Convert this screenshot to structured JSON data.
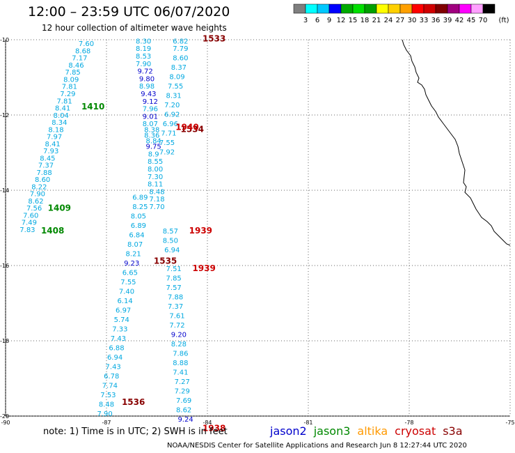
{
  "title": "12:00 – 23:59 UTC 06/07/2020",
  "subtitle": "12 hour collection of altimeter wave heights",
  "note": "note:  1) Time is in UTC;  2) SWH is in feet",
  "credit": "NOAA/NESDIS Center for Satellite Applications and Research    Jun  8 12:27:44 UTC 2020",
  "satellites": [
    {
      "name": "jason2",
      "color": "#0000cc"
    },
    {
      "name": "jason3",
      "color": "#008800"
    },
    {
      "name": "altika",
      "color": "#ff9900"
    },
    {
      "name": "cryosat",
      "color": "#cc0000"
    },
    {
      "name": "s3a",
      "color": "#880000"
    }
  ],
  "color_scale": {
    "labels": [
      "3",
      "6",
      "9",
      "12",
      "15",
      "18",
      "21",
      "24",
      "27",
      "30",
      "33",
      "36",
      "39",
      "42",
      "45",
      "70"
    ],
    "unit": "(ft)",
    "colors": [
      "#7f7f7f",
      "#00ffff",
      "#00c8ff",
      "#0000ff",
      "#00aa00",
      "#00e000",
      "#00a000",
      "#ffff00",
      "#ffd000",
      "#ffa000",
      "#ff0000",
      "#d00000",
      "#800000",
      "#a0007f",
      "#ff00ff",
      "#ffa0ff",
      "#000000"
    ]
  },
  "axes": {
    "lon_ticks": [
      -90,
      -87,
      -84,
      -81,
      -78,
      -75
    ],
    "lat_ticks": [
      -10,
      -12,
      -14,
      -16,
      -18,
      -20
    ],
    "lon_range": [
      -90,
      -75
    ],
    "lat_range": [
      -20,
      -10
    ]
  },
  "track_a": {
    "color": "#00a8e0",
    "labels": [
      {
        "v": "7.60",
        "lon": -87.6,
        "lat": -10.17
      },
      {
        "v": "8.68",
        "lon": -87.7,
        "lat": -10.36
      },
      {
        "v": "7.17",
        "lon": -87.8,
        "lat": -10.55
      },
      {
        "v": "8.46",
        "lon": -87.9,
        "lat": -10.74
      },
      {
        "v": "7.85",
        "lon": -88.0,
        "lat": -10.93
      },
      {
        "v": "8.09",
        "lon": -88.05,
        "lat": -11.12
      },
      {
        "v": "7.81",
        "lon": -88.1,
        "lat": -11.31
      },
      {
        "v": "7.29",
        "lon": -88.15,
        "lat": -11.5
      },
      {
        "v": "7.81",
        "lon": -88.25,
        "lat": -11.69
      },
      {
        "v": "8.41",
        "lon": -88.3,
        "lat": -11.88
      },
      {
        "v": "8.04",
        "lon": -88.35,
        "lat": -12.07
      },
      {
        "v": "8.34",
        "lon": -88.4,
        "lat": -12.26
      },
      {
        "v": "8.18",
        "lon": -88.5,
        "lat": -12.45
      },
      {
        "v": "7.97",
        "lon": -88.55,
        "lat": -12.64
      },
      {
        "v": "8.41",
        "lon": -88.6,
        "lat": -12.83
      },
      {
        "v": "7.93",
        "lon": -88.65,
        "lat": -13.02
      },
      {
        "v": "8.45",
        "lon": -88.75,
        "lat": -13.21
      },
      {
        "v": "7.37",
        "lon": -88.8,
        "lat": -13.4
      },
      {
        "v": "7.88",
        "lon": -88.85,
        "lat": -13.59
      },
      {
        "v": "8.60",
        "lon": -88.9,
        "lat": -13.78
      },
      {
        "v": "8.22",
        "lon": -89.0,
        "lat": -13.97
      },
      {
        "v": "7.90",
        "lon": -89.05,
        "lat": -14.16
      },
      {
        "v": "8.62",
        "lon": -89.1,
        "lat": -14.35
      },
      {
        "v": "7.56",
        "lon": -89.15,
        "lat": -14.54
      },
      {
        "v": "7.60",
        "lon": -89.25,
        "lat": -14.73
      },
      {
        "v": "7.49",
        "lon": -89.3,
        "lat": -14.92
      },
      {
        "v": "7.83",
        "lon": -89.35,
        "lat": -15.11
      }
    ],
    "times": [
      {
        "v": "1410",
        "lon": -87.4,
        "lat": -11.85,
        "color": "#008800"
      },
      {
        "v": "1409",
        "lon": -88.4,
        "lat": -14.55,
        "color": "#008800"
      },
      {
        "v": "1408",
        "lon": -88.6,
        "lat": -15.15,
        "color": "#008800"
      }
    ]
  },
  "track_b": {
    "color": "#00a8e0",
    "labels": [
      {
        "v": "8.30",
        "lon": -85.9,
        "lat": -10.1
      },
      {
        "v": "8.19",
        "lon": -85.9,
        "lat": -10.3
      },
      {
        "v": "8.53",
        "lon": -85.9,
        "lat": -10.5
      },
      {
        "v": "7.90",
        "lon": -85.9,
        "lat": -10.7
      },
      {
        "v": "9.72",
        "lon": -85.85,
        "lat": -10.9,
        "c": "#0000cc"
      },
      {
        "v": "9.80",
        "lon": -85.8,
        "lat": -11.1,
        "c": "#0000cc"
      },
      {
        "v": "8.98",
        "lon": -85.8,
        "lat": -11.3
      },
      {
        "v": "9.43",
        "lon": -85.75,
        "lat": -11.5,
        "c": "#0000cc"
      },
      {
        "v": "9.12",
        "lon": -85.7,
        "lat": -11.7,
        "c": "#0000cc"
      },
      {
        "v": "7.96",
        "lon": -85.7,
        "lat": -11.9
      },
      {
        "v": "9.01",
        "lon": -85.7,
        "lat": -12.1,
        "c": "#0000cc"
      },
      {
        "v": "8.07",
        "lon": -85.7,
        "lat": -12.3
      },
      {
        "v": "8.38",
        "lon": -85.65,
        "lat": -12.45
      },
      {
        "v": "8.36",
        "lon": -85.65,
        "lat": -12.6
      },
      {
        "v": "8.84",
        "lon": -85.6,
        "lat": -12.75
      },
      {
        "v": "9.75",
        "lon": -85.6,
        "lat": -12.9,
        "c": "#0000cc"
      },
      {
        "v": "8.9",
        "lon": -85.6,
        "lat": -13.1
      },
      {
        "v": "8.55",
        "lon": -85.55,
        "lat": -13.3
      },
      {
        "v": "8.00",
        "lon": -85.55,
        "lat": -13.5
      },
      {
        "v": "7.30",
        "lon": -85.55,
        "lat": -13.7
      },
      {
        "v": "8.11",
        "lon": -85.55,
        "lat": -13.9
      },
      {
        "v": "8.48",
        "lon": -85.5,
        "lat": -14.1
      },
      {
        "v": "7.18",
        "lon": -85.5,
        "lat": -14.3
      },
      {
        "v": "7.70",
        "lon": -85.5,
        "lat": -14.5
      }
    ]
  },
  "track_c": {
    "color": "#00a8e0",
    "labels": [
      {
        "v": "6.82",
        "lon": -84.8,
        "lat": -10.1
      },
      {
        "v": "7.79",
        "lon": -84.8,
        "lat": -10.3
      },
      {
        "v": "8.60",
        "lon": -84.8,
        "lat": -10.55
      },
      {
        "v": "8.37",
        "lon": -84.85,
        "lat": -10.8
      },
      {
        "v": "8.09",
        "lon": -84.9,
        "lat": -11.05
      },
      {
        "v": "7.55",
        "lon": -84.95,
        "lat": -11.3
      },
      {
        "v": "8.31",
        "lon": -85.0,
        "lat": -11.55
      },
      {
        "v": "7.20",
        "lon": -85.05,
        "lat": -11.8
      },
      {
        "v": "6.92",
        "lon": -85.05,
        "lat": -12.05
      },
      {
        "v": "6.96",
        "lon": -85.1,
        "lat": -12.3
      },
      {
        "v": "7.71",
        "lon": -85.15,
        "lat": -12.55
      },
      {
        "v": "7.55",
        "lon": -85.2,
        "lat": -12.8
      },
      {
        "v": "7.92",
        "lon": -85.2,
        "lat": -13.05
      }
    ]
  },
  "track_d": {
    "color": "#00a8e0",
    "labels": [
      {
        "v": "6.89",
        "lon": -86.0,
        "lat": -14.25
      },
      {
        "v": "8.25",
        "lon": -86.0,
        "lat": -14.5
      },
      {
        "v": "8.05",
        "lon": -86.05,
        "lat": -14.75
      },
      {
        "v": "6.89",
        "lon": -86.05,
        "lat": -15.0
      },
      {
        "v": "6.84",
        "lon": -86.1,
        "lat": -15.25
      },
      {
        "v": "8.07",
        "lon": -86.15,
        "lat": -15.5
      },
      {
        "v": "8.21",
        "lon": -86.2,
        "lat": -15.75
      },
      {
        "v": "9.23",
        "lon": -86.25,
        "lat": -16.0,
        "c": "#0000cc"
      },
      {
        "v": "6.65",
        "lon": -86.3,
        "lat": -16.25
      },
      {
        "v": "7.55",
        "lon": -86.35,
        "lat": -16.5
      },
      {
        "v": "7.40",
        "lon": -86.4,
        "lat": -16.75
      },
      {
        "v": "6.14",
        "lon": -86.45,
        "lat": -17.0
      },
      {
        "v": "6.97",
        "lon": -86.5,
        "lat": -17.25
      },
      {
        "v": "5.74",
        "lon": -86.55,
        "lat": -17.5
      },
      {
        "v": "7.33",
        "lon": -86.6,
        "lat": -17.75
      },
      {
        "v": "7.43",
        "lon": -86.65,
        "lat": -18.0
      },
      {
        "v": "6.88",
        "lon": -86.7,
        "lat": -18.25
      },
      {
        "v": "6.94",
        "lon": -86.75,
        "lat": -18.5
      },
      {
        "v": "7.43",
        "lon": -86.8,
        "lat": -18.75
      },
      {
        "v": "6.78",
        "lon": -86.85,
        "lat": -19.0
      },
      {
        "v": "7.74",
        "lon": -86.9,
        "lat": -19.25
      },
      {
        "v": "7.53",
        "lon": -86.95,
        "lat": -19.5
      },
      {
        "v": "8.48",
        "lon": -87.0,
        "lat": -19.75
      },
      {
        "v": "7.90",
        "lon": -87.05,
        "lat": -20.0
      }
    ]
  },
  "track_e": {
    "color": "#00a8e0",
    "labels": [
      {
        "v": "8.57",
        "lon": -85.1,
        "lat": -15.15
      },
      {
        "v": "8.50",
        "lon": -85.1,
        "lat": -15.4
      },
      {
        "v": "6.94",
        "lon": -85.05,
        "lat": -15.65
      },
      {
        "v": "7.51",
        "lon": -85.0,
        "lat": -16.15
      },
      {
        "v": "7.85",
        "lon": -85.0,
        "lat": -16.4
      },
      {
        "v": "7.57",
        "lon": -85.0,
        "lat": -16.65
      },
      {
        "v": "7.88",
        "lon": -84.95,
        "lat": -16.9
      },
      {
        "v": "7.37",
        "lon": -84.95,
        "lat": -17.15
      },
      {
        "v": "7.61",
        "lon": -84.9,
        "lat": -17.4
      },
      {
        "v": "7.72",
        "lon": -84.9,
        "lat": -17.65
      },
      {
        "v": "9.20",
        "lon": -84.85,
        "lat": -17.9,
        "c": "#0000cc"
      },
      {
        "v": "8.28",
        "lon": -84.85,
        "lat": -18.15
      },
      {
        "v": "7.86",
        "lon": -84.8,
        "lat": -18.4
      },
      {
        "v": "8.88",
        "lon": -84.8,
        "lat": -18.65
      },
      {
        "v": "7.41",
        "lon": -84.8,
        "lat": -18.9
      },
      {
        "v": "7.27",
        "lon": -84.75,
        "lat": -19.15
      },
      {
        "v": "7.29",
        "lon": -84.75,
        "lat": -19.4
      },
      {
        "v": "7.69",
        "lon": -84.7,
        "lat": -19.65
      },
      {
        "v": "8.62",
        "lon": -84.7,
        "lat": -19.9
      },
      {
        "v": "9.24",
        "lon": -84.65,
        "lat": -20.15,
        "c": "#0000cc"
      }
    ]
  },
  "time_labels": [
    {
      "v": "1533",
      "lon": -83.8,
      "lat": -10.05,
      "color": "#880000"
    },
    {
      "v": "1534",
      "lon": -84.45,
      "lat": -12.45,
      "color": "#880000"
    },
    {
      "v": "1940",
      "lon": -84.6,
      "lat": -12.4,
      "color": "#cc0000"
    },
    {
      "v": "1939",
      "lon": -84.2,
      "lat": -15.15,
      "color": "#cc0000"
    },
    {
      "v": "1535",
      "lon": -85.25,
      "lat": -15.95,
      "color": "#880000"
    },
    {
      "v": "1939",
      "lon": -84.1,
      "lat": -16.15,
      "color": "#cc0000"
    },
    {
      "v": "1536",
      "lon": -86.2,
      "lat": -19.7,
      "color": "#880000"
    },
    {
      "v": "1938",
      "lon": -83.8,
      "lat": -20.4,
      "color": "#cc0000"
    }
  ]
}
